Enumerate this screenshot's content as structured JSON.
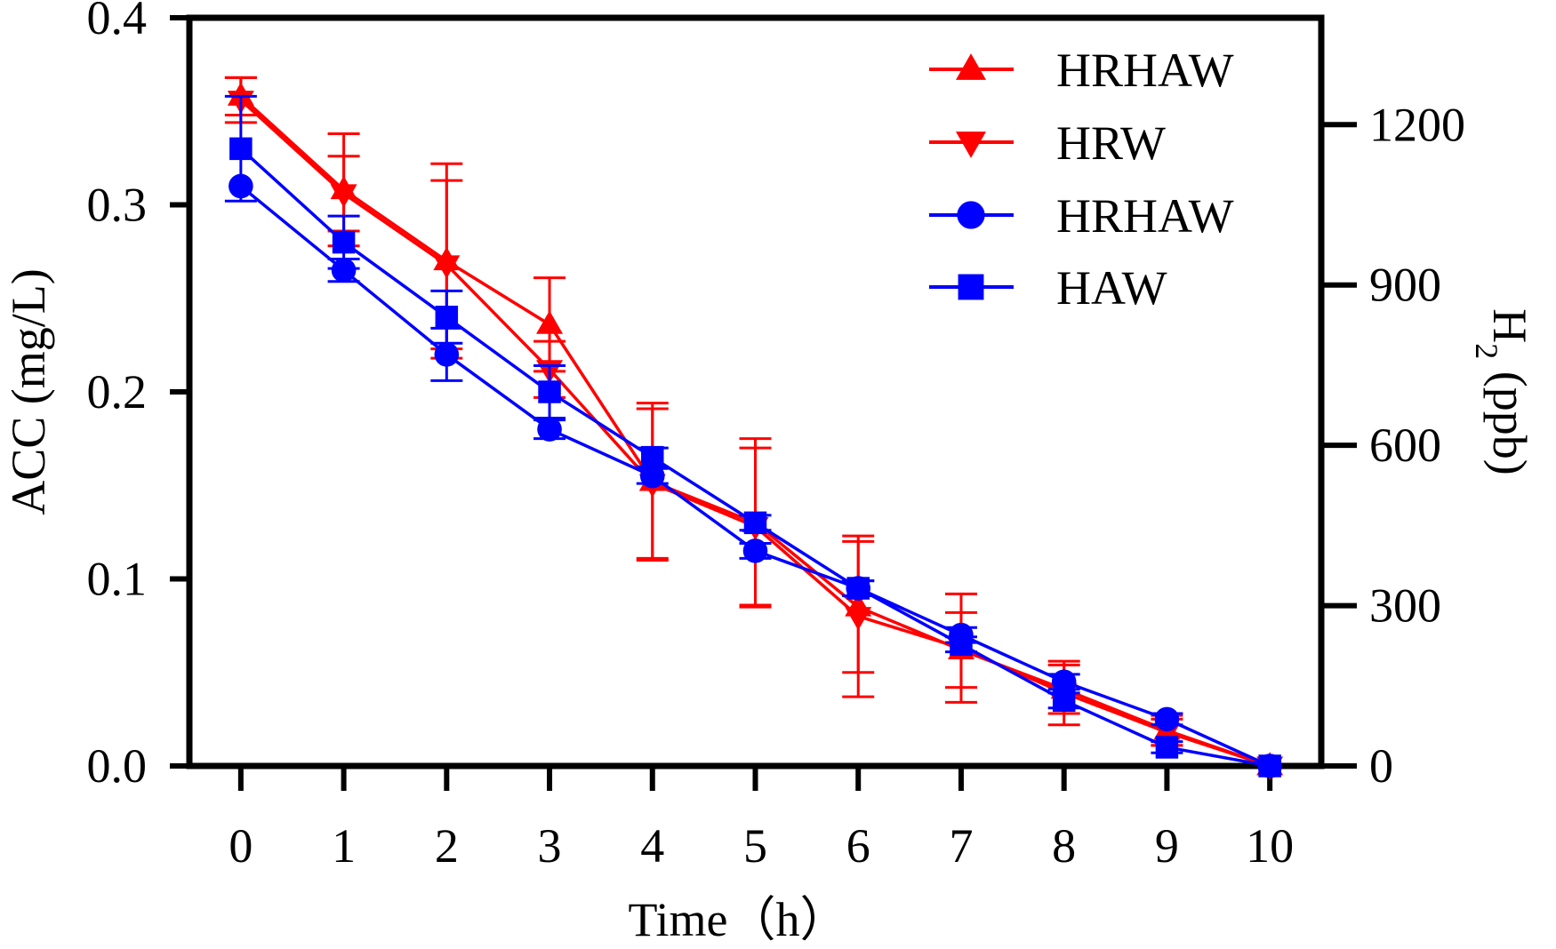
{
  "chart_data": {
    "type": "line",
    "title": "",
    "xlabel": "Time（h）",
    "ylabel": "ACC (mg/L)",
    "y2label_main": "H",
    "y2label_sub": "2",
    "y2label_rest": " (ppb)",
    "xlim": [
      -0.5,
      10.5
    ],
    "ylim": [
      0,
      0.4
    ],
    "y2lim": [
      0,
      1400
    ],
    "x_ticks": [
      "0",
      "1",
      "2",
      "3",
      "4",
      "5",
      "6",
      "7",
      "8",
      "9",
      "10"
    ],
    "y_ticks": [
      "0.0",
      "0.1",
      "0.2",
      "0.3",
      "0.4"
    ],
    "y2_ticks": [
      "0",
      "300",
      "600",
      "900",
      "1200"
    ],
    "legend_position": "top-right",
    "x": [
      0,
      1,
      2,
      3,
      4,
      5,
      6,
      7,
      8,
      9,
      10
    ],
    "series": [
      {
        "name": "HRHAW",
        "color": "#ff0000",
        "marker": "triangle-up",
        "values": [
          0.358,
          0.308,
          0.27,
          0.236,
          0.152,
          0.13,
          0.085,
          0.062,
          0.041,
          0.019,
          0.0
        ],
        "errors": [
          0.01,
          0.03,
          0.052,
          0.025,
          0.042,
          0.045,
          0.035,
          0.02,
          0.013,
          0.008,
          0.0
        ]
      },
      {
        "name": "HRW",
        "color": "#ff0000",
        "marker": "triangle-down",
        "values": [
          0.356,
          0.306,
          0.268,
          0.212,
          0.151,
          0.128,
          0.08,
          0.063,
          0.039,
          0.018,
          0.0
        ],
        "errors": [
          0.012,
          0.02,
          0.045,
          0.015,
          0.04,
          0.042,
          0.043,
          0.029,
          0.017,
          0.007,
          0.0
        ]
      },
      {
        "name": "HRHAW",
        "color": "#0000ff",
        "marker": "circle",
        "values": [
          0.31,
          0.265,
          0.22,
          0.18,
          0.155,
          0.115,
          0.095,
          0.07,
          0.045,
          0.025,
          0.0
        ],
        "errors": [
          0.0,
          0.006,
          0.014,
          0.005,
          0.004,
          0.004,
          0.004,
          0.004,
          0.004,
          0.003,
          0.0
        ]
      },
      {
        "name": "HAW",
        "color": "#0000ff",
        "marker": "square",
        "values": [
          0.33,
          0.28,
          0.24,
          0.2,
          0.165,
          0.13,
          0.095,
          0.065,
          0.035,
          0.01,
          0.0
        ],
        "errors": [
          0.028,
          0.014,
          0.014,
          0.014,
          0.005,
          0.004,
          0.004,
          0.004,
          0.004,
          0.003,
          0.0
        ]
      }
    ]
  }
}
